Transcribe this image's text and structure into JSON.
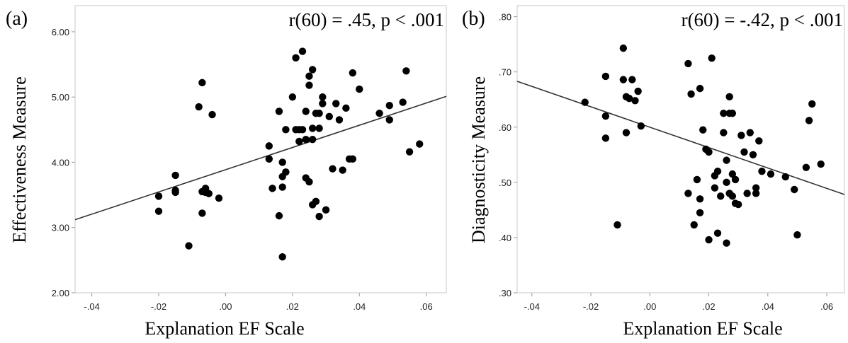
{
  "chart_data": [
    {
      "type": "scatter",
      "panel_label": "(a)",
      "annotation": "r(60) = .45, p < .001",
      "xlabel": "Explanation EF Scale",
      "ylabel": "Effectiveness Measure",
      "xlim": [
        -0.045,
        0.066
      ],
      "ylim": [
        2.0,
        6.4
      ],
      "xticks": [
        -0.04,
        -0.02,
        0.0,
        0.02,
        0.04,
        0.06
      ],
      "xtick_labels": [
        "-.04",
        "-.02",
        ".00",
        ".02",
        ".04",
        ".06"
      ],
      "yticks": [
        2.0,
        3.0,
        4.0,
        5.0,
        6.0
      ],
      "ytick_labels": [
        "2.00",
        "3.00",
        "4.00",
        "5.00",
        "6.00"
      ],
      "fit_line": {
        "x": [
          -0.045,
          0.066
        ],
        "y": [
          3.12,
          5.01
        ]
      },
      "points": {
        "x": [
          -0.02,
          -0.02,
          -0.015,
          -0.015,
          -0.015,
          -0.011,
          -0.008,
          -0.007,
          -0.007,
          -0.007,
          -0.006,
          -0.006,
          -0.005,
          -0.004,
          -0.002,
          0.013,
          0.013,
          0.014,
          0.016,
          0.016,
          0.017,
          0.017,
          0.017,
          0.018,
          0.018,
          0.017,
          0.02,
          0.021,
          0.021,
          0.022,
          0.022,
          0.023,
          0.023,
          0.024,
          0.024,
          0.024,
          0.025,
          0.025,
          0.025,
          0.026,
          0.026,
          0.026,
          0.026,
          0.027,
          0.027,
          0.028,
          0.028,
          0.028,
          0.029,
          0.029,
          0.03,
          0.031,
          0.032,
          0.033,
          0.034,
          0.035,
          0.036,
          0.037,
          0.038,
          0.038,
          0.04,
          0.046,
          0.049,
          0.049,
          0.053,
          0.054,
          0.055,
          0.058
        ],
        "y": [
          3.48,
          3.25,
          3.8,
          3.57,
          3.54,
          2.72,
          4.85,
          3.55,
          3.22,
          5.22,
          3.54,
          3.6,
          3.52,
          4.73,
          3.45,
          4.25,
          4.05,
          3.6,
          4.78,
          3.18,
          4.0,
          3.62,
          3.78,
          4.5,
          3.85,
          2.55,
          5.0,
          5.6,
          4.5,
          4.5,
          4.32,
          5.7,
          4.5,
          3.76,
          4.35,
          4.78,
          5.18,
          5.32,
          3.7,
          3.35,
          4.35,
          4.52,
          5.42,
          4.75,
          3.4,
          3.17,
          4.75,
          4.52,
          5.0,
          4.9,
          3.27,
          4.7,
          3.9,
          4.9,
          4.65,
          3.88,
          4.83,
          4.05,
          5.37,
          4.05,
          5.12,
          4.75,
          4.87,
          4.65,
          4.92,
          5.4,
          4.16,
          4.28
        ]
      }
    },
    {
      "type": "scatter",
      "panel_label": "(b)",
      "annotation": "r(60) = -.42, p < .001",
      "xlabel": "Explanation EF Scale",
      "ylabel": "Diagnosticity Measure",
      "xlim": [
        -0.045,
        0.066
      ],
      "ylim": [
        0.3,
        0.82
      ],
      "xticks": [
        -0.04,
        -0.02,
        0.0,
        0.02,
        0.04,
        0.06
      ],
      "xtick_labels": [
        "-.04",
        "-.02",
        ".00",
        ".02",
        ".04",
        ".06"
      ],
      "yticks": [
        0.3,
        0.4,
        0.5,
        0.6,
        0.7,
        0.8
      ],
      "ytick_labels": [
        ".30",
        ".40",
        ".50",
        ".60",
        ".70",
        ".80"
      ],
      "fit_line": {
        "x": [
          -0.045,
          0.066
        ],
        "y": [
          0.683,
          0.478
        ]
      },
      "points": {
        "x": [
          -0.022,
          -0.015,
          -0.015,
          -0.015,
          -0.011,
          -0.009,
          -0.009,
          -0.008,
          -0.008,
          -0.007,
          -0.006,
          -0.005,
          -0.004,
          -0.003,
          0.013,
          0.013,
          0.014,
          0.015,
          0.016,
          0.017,
          0.017,
          0.017,
          0.018,
          0.019,
          0.02,
          0.02,
          0.021,
          0.022,
          0.022,
          0.023,
          0.023,
          0.024,
          0.025,
          0.025,
          0.026,
          0.026,
          0.026,
          0.027,
          0.027,
          0.027,
          0.028,
          0.028,
          0.028,
          0.029,
          0.029,
          0.03,
          0.031,
          0.032,
          0.033,
          0.034,
          0.035,
          0.036,
          0.036,
          0.037,
          0.038,
          0.041,
          0.046,
          0.049,
          0.05,
          0.053,
          0.054,
          0.055,
          0.058
        ],
        "y": [
          0.645,
          0.692,
          0.62,
          0.58,
          0.423,
          0.743,
          0.686,
          0.655,
          0.59,
          0.652,
          0.686,
          0.648,
          0.665,
          0.602,
          0.715,
          0.48,
          0.66,
          0.423,
          0.505,
          0.445,
          0.47,
          0.67,
          0.595,
          0.56,
          0.555,
          0.396,
          0.725,
          0.49,
          0.512,
          0.408,
          0.52,
          0.475,
          0.59,
          0.625,
          0.39,
          0.54,
          0.5,
          0.625,
          0.48,
          0.655,
          0.475,
          0.625,
          0.515,
          0.462,
          0.505,
          0.46,
          0.585,
          0.555,
          0.48,
          0.59,
          0.55,
          0.48,
          0.49,
          0.575,
          0.52,
          0.515,
          0.51,
          0.487,
          0.405,
          0.527,
          0.612,
          0.642,
          0.533
        ]
      }
    }
  ]
}
